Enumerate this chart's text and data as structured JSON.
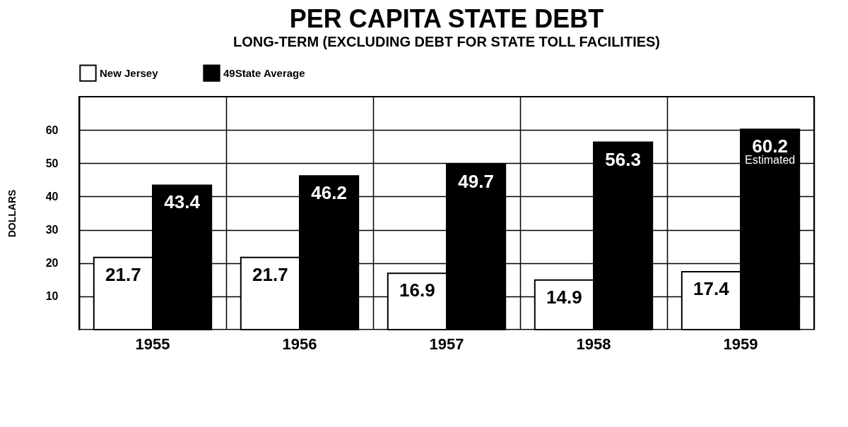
{
  "chart_data": {
    "type": "bar",
    "title": "PER CAPITA STATE DEBT",
    "subtitle": "LONG-TERM (EXCLUDING DEBT FOR STATE TOLL FACILITIES)",
    "ylabel": "DOLLARS",
    "categories": [
      "1955",
      "1956",
      "1957",
      "1958",
      "1959"
    ],
    "series": [
      {
        "name": "New Jersey",
        "color": "#ffffff",
        "values": [
          21.7,
          21.7,
          16.9,
          14.9,
          17.4
        ]
      },
      {
        "name": "49State Average",
        "color": "#000000",
        "values": [
          43.4,
          46.2,
          49.7,
          56.3,
          60.2
        ]
      }
    ],
    "ylim": [
      0,
      70
    ],
    "yticks": [
      10,
      20,
      30,
      40,
      50,
      60
    ],
    "grid": true,
    "legend": "top",
    "data_labels": true,
    "annotations": [
      {
        "text": "Estimated",
        "x": "1959",
        "y": 51
      }
    ]
  }
}
